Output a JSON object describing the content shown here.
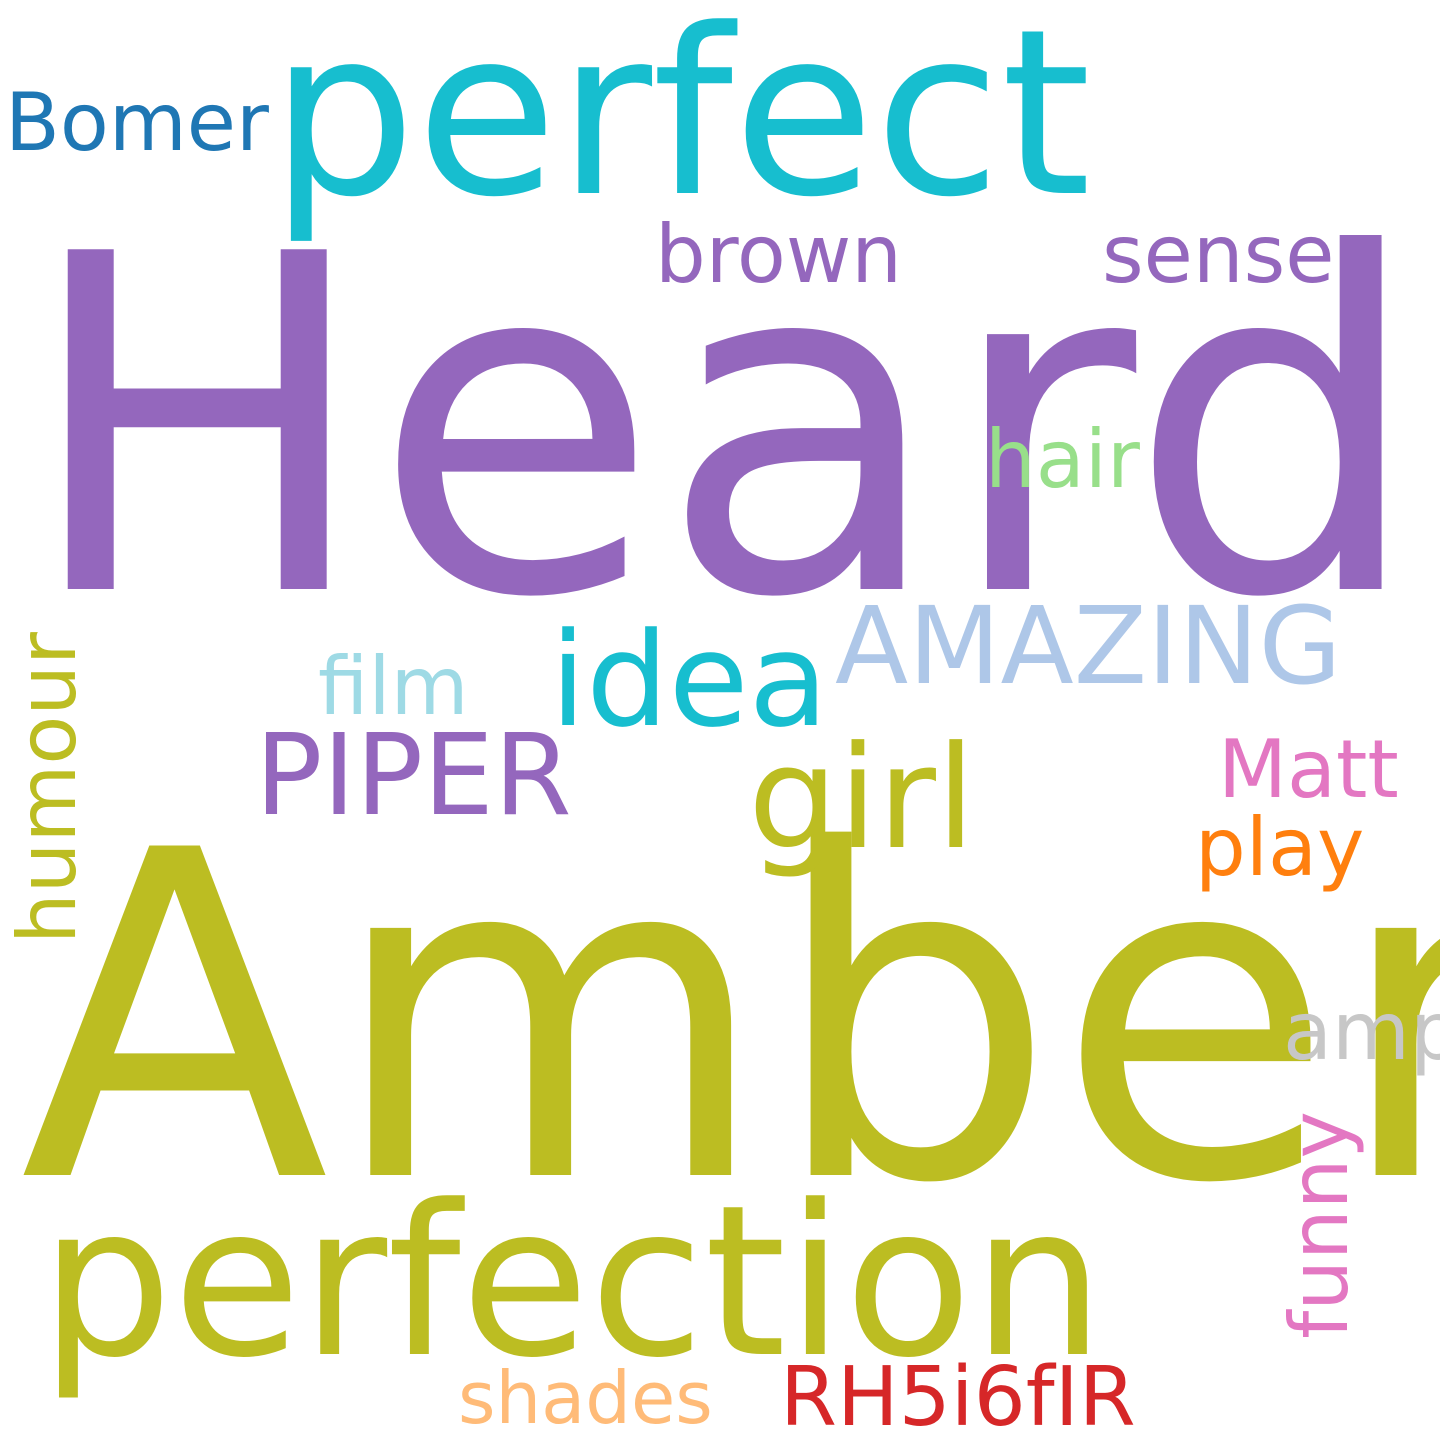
{
  "words": [
    {
      "text": "Heard",
      "color": "#9467bd",
      "rotate": false
    },
    {
      "text": "Amber",
      "color": "#bcbd22",
      "rotate": false
    },
    {
      "text": "perfect",
      "color": "#17becf",
      "rotate": false
    },
    {
      "text": "perfection",
      "color": "#bcbd22",
      "rotate": false
    },
    {
      "text": "AMAZING",
      "color": "#aec7e8",
      "rotate": false
    },
    {
      "text": "girl",
      "color": "#bcbd22",
      "rotate": false
    },
    {
      "text": "idea",
      "color": "#17becf",
      "rotate": false
    },
    {
      "text": "PIPER",
      "color": "#9467bd",
      "rotate": false
    },
    {
      "text": "brown",
      "color": "#9467bd",
      "rotate": false
    },
    {
      "text": "sense",
      "color": "#9467bd",
      "rotate": false
    },
    {
      "text": "Bomer",
      "color": "#1f77b4",
      "rotate": false
    },
    {
      "text": "hair",
      "color": "#98df8a",
      "rotate": false
    },
    {
      "text": "film",
      "color": "#9edae5",
      "rotate": false
    },
    {
      "text": "humour",
      "color": "#bcbd22",
      "rotate": true
    },
    {
      "text": "Matt",
      "color": "#e377c2",
      "rotate": false
    },
    {
      "text": "play",
      "color": "#ff7f0e",
      "rotate": false
    },
    {
      "text": "amp",
      "color": "#c7c7c7",
      "rotate": false
    },
    {
      "text": "funny",
      "color": "#e377c2",
      "rotate": true
    },
    {
      "text": "shades",
      "color": "#ffbb78",
      "rotate": false
    },
    {
      "text": "RH5i6fIR",
      "color": "#d62728",
      "rotate": false
    }
  ]
}
